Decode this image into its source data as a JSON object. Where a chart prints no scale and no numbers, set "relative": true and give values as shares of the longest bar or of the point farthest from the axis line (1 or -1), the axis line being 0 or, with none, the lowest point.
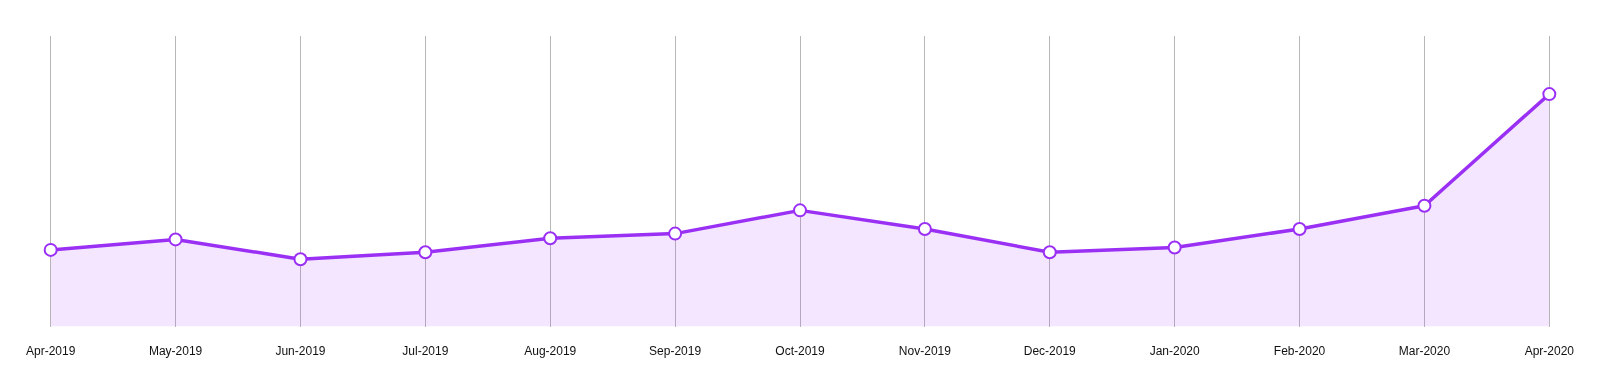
{
  "chart_data": {
    "type": "area",
    "relative": true,
    "categories": [
      "Apr-2019",
      "May-2019",
      "Jun-2019",
      "Jul-2019",
      "Aug-2019",
      "Sep-2019",
      "Oct-2019",
      "Nov-2019",
      "Dec-2019",
      "Jan-2020",
      "Feb-2020",
      "Mar-2020",
      "Apr-2020"
    ],
    "series": [
      {
        "color": "#9b30f5",
        "values": [
          0.33,
          0.375,
          0.29,
          0.32,
          0.38,
          0.4,
          0.5,
          0.42,
          0.32,
          0.34,
          0.42,
          0.52,
          1
        ]
      }
    ],
    "grid": "x",
    "legend": false,
    "marker": "circle",
    "line_style": "solid"
  }
}
